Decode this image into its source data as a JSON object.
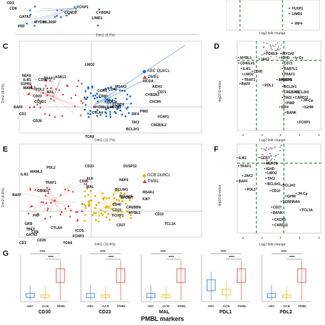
{
  "panels": {
    "A_top": {
      "genes": [
        "CD3",
        "CD8",
        "PRF",
        "GATA3",
        "FOXP1",
        "CYBSR2",
        "CCND2",
        "LIMD1",
        "MYD88L265P"
      ],
      "xlabel": "Dim1 (9.7%)"
    },
    "B_top": {
      "genes": [
        "FUXP1",
        "LIMD1",
        "IRF4"
      ],
      "xlabel": "Log2 fold change"
    },
    "C": {
      "label": "C",
      "genes": [
        "NEK6",
        "IL4I1",
        "S1PR2",
        "MAML3",
        "CD95",
        "TRAF1",
        "ASB13",
        "MAL",
        "BAFF",
        "CD23",
        "PDL2",
        "CCND1",
        "CD3",
        "CD28",
        "TCRβ",
        "LMO2",
        "MS4A1",
        "AICDA",
        "AID#1",
        "CD71",
        "CCR4",
        "CD40",
        "CD80",
        "PDL1",
        "CCND2",
        "CYBSR2",
        "CXCR5",
        "MYD88e3-e4",
        "CTLA4",
        "PIM2",
        "MYC#1",
        "IRF4",
        "FOXP1",
        "TACI",
        "BCL2#1",
        "CREB3L2"
      ],
      "xlabel": "Dim1 (11.7%)",
      "ylabel": "Dim2 (8.1%)",
      "legend": [
        "ABC DLBCL",
        "PMBL"
      ]
    },
    "D": {
      "label": "D",
      "genes": [
        "MYBL1",
        "CD40L#1",
        "IL4I1",
        "LMO2",
        "TRAF1",
        "BAFF",
        "FCRL3",
        "JAK2",
        "CD95",
        "PDL1",
        "MYC#2",
        "IGHD",
        "CD71",
        "RAB7L1",
        "TRAF1",
        "MYC#1",
        "SH3BP5",
        "BCL2#1",
        "BCL2#2",
        "CREB3L2",
        "CARD11",
        "TACI",
        "PIM2",
        "IRF4",
        "JH-Cμ",
        "IGHM",
        "FOXP1",
        "Iγ-Cγ",
        "BANK"
      ],
      "xlabel": "Log2 fold change",
      "ylabel": "-log10 E-value"
    },
    "E": {
      "label": "E",
      "genes": [
        "PDL2",
        "IL4I1",
        "MAML3",
        "TRAF1",
        "CCND1",
        "BAFF",
        "PRF",
        "GRB",
        "TBET",
        "GATA3",
        "CD3",
        "CTLA4",
        "CD8",
        "CD28",
        "CD23",
        "CD95",
        "MAL",
        "ALK",
        "NEK6",
        "BCL6#1",
        "BCL6#2",
        "CD40",
        "CD19",
        "FOXP1",
        "CD27",
        "CREBBN",
        "MS4A1",
        "KI67",
        "XPOWT",
        "MYBL1",
        "TCL1A",
        "CD10",
        "ICOS",
        "FOXP3",
        "TCRβ",
        "DUSP22"
      ],
      "xlabel": "Dim1 (10.4%)",
      "ylabel": "Dim2 (6.6%)",
      "legend": [
        "GCB DLBCL",
        "PMBL"
      ]
    },
    "F": {
      "label": "F",
      "genes": [
        "MEF2B",
        "IGHD",
        "LMO2",
        "TACI",
        "JAK2",
        "TRAF1",
        "BAFF",
        "PDL1",
        "IL4I1",
        "CCR7",
        "BCL6#2",
        "CD10",
        "BCL2#2",
        "IGHM",
        "SERPINA9",
        "CD27",
        "BANK",
        "CXCR5",
        "CARD11",
        "JH-Cμ",
        "TCL1A"
      ],
      "xlabel": "Log2 fold change",
      "ylabel": "-log10 E-value"
    },
    "G": {
      "label": "G",
      "markers": [
        {
          "name": "CD30",
          "sig": [
            "****",
            "****"
          ],
          "groups": [
            "ABC",
            "GCB",
            "PMBL"
          ]
        },
        {
          "name": "CD23",
          "sig": [
            "****",
            "****"
          ],
          "groups": [
            "ABC",
            "GCB",
            "PMBL"
          ]
        },
        {
          "name": "MAL",
          "sig": [
            "****",
            "****"
          ],
          "groups": [
            "ABC",
            "GCB",
            "PMBL"
          ]
        },
        {
          "name": "PDL1",
          "sig": [
            "****",
            "****"
          ],
          "groups": [
            "ABC",
            "GCB",
            "PMBL"
          ]
        },
        {
          "name": "PDL2",
          "sig": [
            "****",
            "****"
          ],
          "groups": [
            "ABC",
            "GCB",
            "PMBL"
          ]
        }
      ],
      "title": "PMBL markers"
    }
  },
  "colors": {
    "abc": "#2a6fc0",
    "pmbl": "#d23a3a",
    "gcb": "#e8b400",
    "green": "#2a8a3a"
  }
}
